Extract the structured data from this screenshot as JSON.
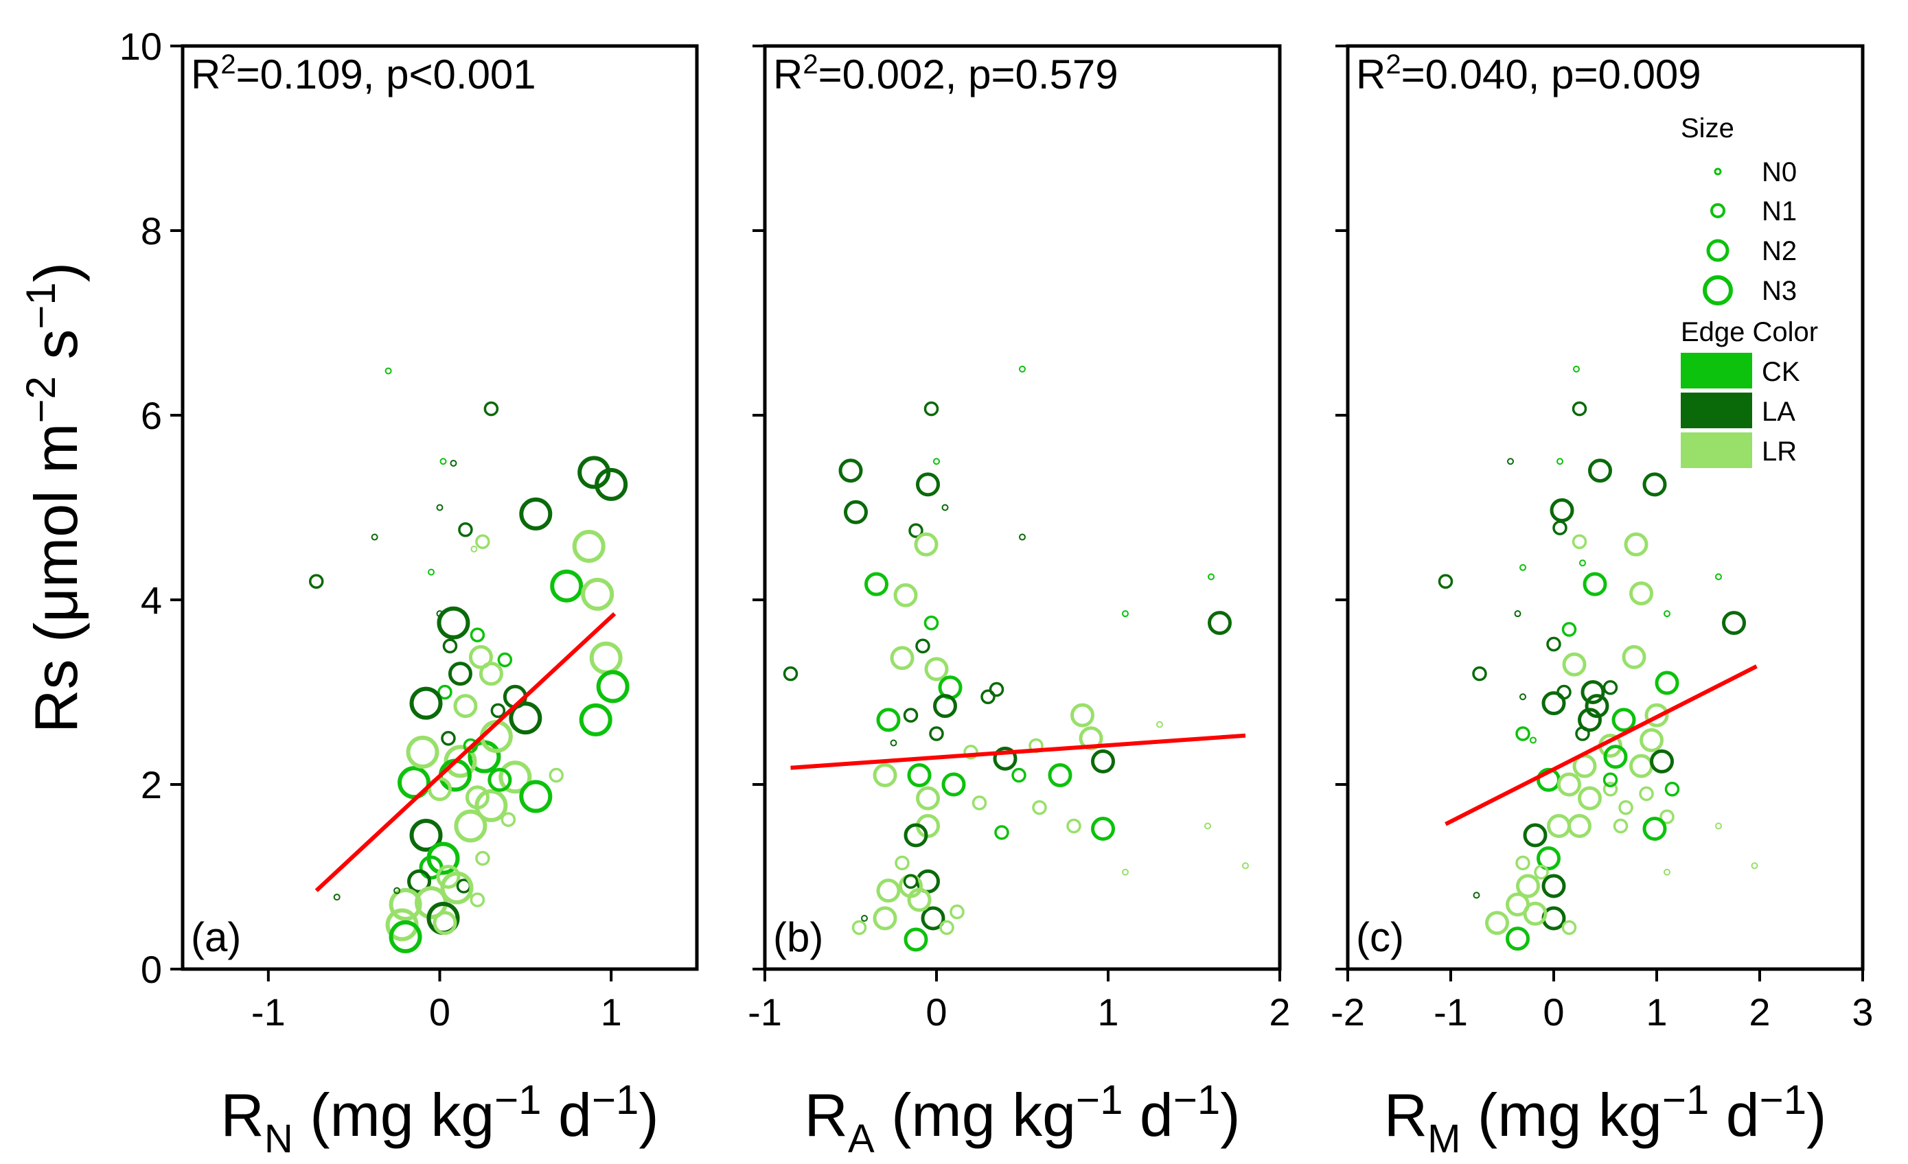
{
  "chart_data": [
    {
      "type": "scatter",
      "panel": "(a)",
      "annotation": {
        "main": "R",
        "sup": "2",
        "rest": "=0.109, p<0.001"
      },
      "xlabel": {
        "main": "R",
        "sub": "N",
        "units": " (mg kg",
        "sup1": "−1",
        "mid": " d",
        "sup2": "−1",
        "end": ")"
      },
      "ylabel": {
        "pre": "Rs (μmol m",
        "sup1": "−2",
        "mid": " s",
        "sup2": "−1",
        "end": ")"
      },
      "xlim": [
        -1.5,
        1.5
      ],
      "ylim": [
        0,
        10
      ],
      "xticks": [
        -1,
        0,
        1
      ],
      "yticks": [
        0,
        2,
        4,
        6,
        8,
        10
      ],
      "fit_line": {
        "x": [
          -0.72,
          1.02
        ],
        "y": [
          0.85,
          3.85
        ]
      },
      "points": [
        [
          -0.72,
          4.2,
          "LA",
          "N1"
        ],
        [
          -0.6,
          0.78,
          "LA",
          "N0"
        ],
        [
          -0.3,
          6.48,
          "CK",
          "N0"
        ],
        [
          -0.38,
          4.68,
          "LA",
          "N0"
        ],
        [
          0.3,
          6.07,
          "LA",
          "N1"
        ],
        [
          0.08,
          5.48,
          "LA",
          "N0"
        ],
        [
          0.02,
          5.5,
          "CK",
          "N0"
        ],
        [
          0.15,
          4.76,
          "LA",
          "N1"
        ],
        [
          0.25,
          4.63,
          "LR",
          "N1"
        ],
        [
          0.2,
          4.55,
          "LR",
          "N0"
        ],
        [
          0.0,
          5.0,
          "LA",
          "N0"
        ],
        [
          -0.05,
          4.3,
          "CK",
          "N0"
        ],
        [
          0.56,
          4.93,
          "LA",
          "N3"
        ],
        [
          0.9,
          5.38,
          "LA",
          "N3"
        ],
        [
          1.0,
          5.25,
          "LA",
          "N3"
        ],
        [
          0.87,
          4.58,
          "LR",
          "N3"
        ],
        [
          0.74,
          4.15,
          "CK",
          "N3"
        ],
        [
          0.92,
          4.06,
          "LR",
          "N3"
        ],
        [
          0.97,
          3.37,
          "LR",
          "N3"
        ],
        [
          1.01,
          3.06,
          "CK",
          "N3"
        ],
        [
          0.91,
          2.7,
          "CK",
          "N3"
        ],
        [
          0.0,
          3.85,
          "LA",
          "N0"
        ],
        [
          0.06,
          3.5,
          "LA",
          "N1"
        ],
        [
          0.08,
          3.75,
          "LA",
          "N3"
        ],
        [
          0.12,
          3.2,
          "LA",
          "N2"
        ],
        [
          0.22,
          3.62,
          "CK",
          "N1"
        ],
        [
          0.24,
          3.38,
          "LR",
          "N2"
        ],
        [
          0.3,
          3.2,
          "LR",
          "N2"
        ],
        [
          0.38,
          3.35,
          "CK",
          "N1"
        ],
        [
          0.44,
          2.95,
          "LA",
          "N2"
        ],
        [
          0.5,
          2.72,
          "LA",
          "N3"
        ],
        [
          0.34,
          2.8,
          "LA",
          "N1"
        ],
        [
          0.03,
          3.0,
          "CK",
          "N1"
        ],
        [
          -0.08,
          2.88,
          "LA",
          "N3"
        ],
        [
          0.15,
          2.85,
          "LR",
          "N2"
        ],
        [
          0.26,
          2.3,
          "CK",
          "N3"
        ],
        [
          0.33,
          2.52,
          "LR",
          "N3"
        ],
        [
          0.44,
          2.08,
          "LR",
          "N3"
        ],
        [
          0.56,
          1.87,
          "CK",
          "N3"
        ],
        [
          0.68,
          2.1,
          "LR",
          "N1"
        ],
        [
          -0.15,
          2.02,
          "CK",
          "N3"
        ],
        [
          -0.1,
          2.35,
          "LR",
          "N3"
        ],
        [
          0.05,
          2.5,
          "LA",
          "N1"
        ],
        [
          0.12,
          2.25,
          "LR",
          "N3"
        ],
        [
          0.22,
          1.86,
          "LR",
          "N2"
        ],
        [
          0.3,
          1.77,
          "LR",
          "N3"
        ],
        [
          0.4,
          1.62,
          "LR",
          "N1"
        ],
        [
          0.18,
          1.55,
          "LR",
          "N3"
        ],
        [
          0.09,
          2.1,
          "CK",
          "N3"
        ],
        [
          0.0,
          1.95,
          "LR",
          "N2"
        ],
        [
          -0.08,
          1.45,
          "LA",
          "N3"
        ],
        [
          -0.05,
          1.1,
          "CK",
          "N2"
        ],
        [
          0.02,
          1.2,
          "CK",
          "N3"
        ],
        [
          -0.12,
          0.95,
          "LA",
          "N2"
        ],
        [
          0.05,
          1.0,
          "LR",
          "N2"
        ],
        [
          0.14,
          0.9,
          "LA",
          "N1"
        ],
        [
          -0.2,
          0.7,
          "LR",
          "N3"
        ],
        [
          -0.05,
          0.72,
          "LR",
          "N3"
        ],
        [
          0.02,
          0.55,
          "LA",
          "N3"
        ],
        [
          0.1,
          0.88,
          "LR",
          "N3"
        ],
        [
          -0.22,
          0.48,
          "LR",
          "N3"
        ],
        [
          -0.2,
          0.35,
          "CK",
          "N3"
        ],
        [
          0.03,
          0.5,
          "LR",
          "N2"
        ],
        [
          0.25,
          1.2,
          "LR",
          "N1"
        ],
        [
          -0.25,
          0.85,
          "LA",
          "N0"
        ],
        [
          0.22,
          0.75,
          "LR",
          "N1"
        ],
        [
          0.35,
          2.05,
          "CK",
          "N2"
        ],
        [
          0.18,
          2.42,
          "CK",
          "N1"
        ]
      ]
    },
    {
      "type": "scatter",
      "panel": "(b)",
      "annotation": {
        "main": "R",
        "sup": "2",
        "rest": "=0.002, p=0.579"
      },
      "xlabel": {
        "main": "R",
        "sub": "A",
        "units": " (mg kg",
        "sup1": "−1",
        "mid": " d",
        "sup2": "−1",
        "end": ")"
      },
      "xlim": [
        -1,
        2
      ],
      "ylim": [
        0,
        10
      ],
      "xticks": [
        -1,
        0,
        1,
        2
      ],
      "yticks": [
        0,
        2,
        4,
        6,
        8,
        10
      ],
      "fit_line": {
        "x": [
          -0.85,
          1.8
        ],
        "y": [
          2.18,
          2.53
        ]
      },
      "points": [
        [
          -0.85,
          3.2,
          "LA",
          "N1"
        ],
        [
          -0.5,
          5.4,
          "LA",
          "N2"
        ],
        [
          -0.47,
          4.95,
          "LA",
          "N2"
        ],
        [
          -0.35,
          4.17,
          "CK",
          "N2"
        ],
        [
          -0.03,
          6.07,
          "LA",
          "N1"
        ],
        [
          0.0,
          5.5,
          "CK",
          "N0"
        ],
        [
          -0.05,
          5.25,
          "LA",
          "N2"
        ],
        [
          -0.12,
          4.75,
          "LA",
          "N1"
        ],
        [
          -0.06,
          4.6,
          "LR",
          "N2"
        ],
        [
          0.05,
          5.0,
          "LA",
          "N0"
        ],
        [
          -0.18,
          4.05,
          "LR",
          "N2"
        ],
        [
          0.5,
          6.5,
          "CK",
          "N0"
        ],
        [
          0.5,
          4.68,
          "LA",
          "N0"
        ],
        [
          1.6,
          4.25,
          "CK",
          "N0"
        ],
        [
          1.65,
          3.75,
          "LA",
          "N2"
        ],
        [
          1.1,
          3.85,
          "CK",
          "N0"
        ],
        [
          -0.08,
          3.5,
          "LA",
          "N1"
        ],
        [
          -0.03,
          3.75,
          "CK",
          "N1"
        ],
        [
          -0.2,
          3.37,
          "LR",
          "N2"
        ],
        [
          0.0,
          3.25,
          "LR",
          "N2"
        ],
        [
          0.08,
          3.05,
          "CK",
          "N2"
        ],
        [
          0.05,
          2.85,
          "LA",
          "N2"
        ],
        [
          -0.15,
          2.75,
          "LA",
          "N1"
        ],
        [
          -0.28,
          2.7,
          "CK",
          "N2"
        ],
        [
          0.3,
          2.95,
          "LA",
          "N1"
        ],
        [
          0.35,
          3.03,
          "LA",
          "N1"
        ],
        [
          0.85,
          2.75,
          "LR",
          "N2"
        ],
        [
          0.9,
          2.5,
          "LR",
          "N2"
        ],
        [
          1.3,
          2.65,
          "LR",
          "N0"
        ],
        [
          -0.25,
          2.45,
          "LA",
          "N0"
        ],
        [
          0.0,
          2.55,
          "LA",
          "N1"
        ],
        [
          0.2,
          2.35,
          "LR",
          "N1"
        ],
        [
          0.4,
          2.28,
          "LA",
          "N2"
        ],
        [
          0.58,
          2.42,
          "LR",
          "N1"
        ],
        [
          0.72,
          2.1,
          "CK",
          "N2"
        ],
        [
          0.97,
          2.25,
          "LA",
          "N2"
        ],
        [
          -0.3,
          2.1,
          "LR",
          "N2"
        ],
        [
          -0.1,
          2.1,
          "CK",
          "N2"
        ],
        [
          0.1,
          2.0,
          "CK",
          "N2"
        ],
        [
          0.25,
          1.8,
          "LR",
          "N1"
        ],
        [
          0.6,
          1.75,
          "LR",
          "N1"
        ],
        [
          0.8,
          1.55,
          "LR",
          "N1"
        ],
        [
          0.97,
          1.52,
          "CK",
          "N2"
        ],
        [
          0.38,
          1.48,
          "CK",
          "N1"
        ],
        [
          -0.05,
          1.55,
          "LR",
          "N2"
        ],
        [
          -0.05,
          1.85,
          "LR",
          "N2"
        ],
        [
          -0.12,
          1.45,
          "LA",
          "N2"
        ],
        [
          -0.2,
          1.15,
          "LR",
          "N1"
        ],
        [
          -0.05,
          0.95,
          "LA",
          "N2"
        ],
        [
          -0.15,
          0.9,
          "LR",
          "N2"
        ],
        [
          -0.28,
          0.85,
          "LR",
          "N2"
        ],
        [
          -0.02,
          0.55,
          "LA",
          "N2"
        ],
        [
          -0.3,
          0.55,
          "LR",
          "N2"
        ],
        [
          -0.1,
          0.75,
          "LR",
          "N2"
        ],
        [
          -0.12,
          0.32,
          "CK",
          "N2"
        ],
        [
          -0.45,
          0.45,
          "LR",
          "N1"
        ],
        [
          -0.42,
          0.55,
          "LA",
          "N0"
        ],
        [
          0.06,
          0.45,
          "LR",
          "N1"
        ],
        [
          1.1,
          1.05,
          "LR",
          "N0"
        ],
        [
          1.8,
          1.12,
          "LR",
          "N0"
        ],
        [
          1.58,
          1.55,
          "LR",
          "N0"
        ],
        [
          0.48,
          2.1,
          "CK",
          "N1"
        ],
        [
          -0.15,
          0.95,
          "LA",
          "N1"
        ],
        [
          0.12,
          0.62,
          "LR",
          "N1"
        ]
      ]
    },
    {
      "type": "scatter",
      "panel": "(c)",
      "annotation": {
        "main": "R",
        "sup": "2",
        "rest": "=0.040, p=0.009"
      },
      "xlabel": {
        "main": "R",
        "sub": "M",
        "units": " (mg kg",
        "sup1": "−1",
        "mid": " d",
        "sup2": "−1",
        "end": ")"
      },
      "xlim": [
        -2,
        3
      ],
      "ylim": [
        0,
        10
      ],
      "xticks": [
        -2,
        -1,
        0,
        1,
        2,
        3
      ],
      "yticks": [
        0,
        2,
        4,
        6,
        8,
        10
      ],
      "fit_line": {
        "x": [
          -1.05,
          1.97
        ],
        "y": [
          1.57,
          3.28
        ]
      },
      "points": [
        [
          -1.05,
          4.2,
          "LA",
          "N1"
        ],
        [
          -0.72,
          3.2,
          "LA",
          "N1"
        ],
        [
          -0.42,
          5.5,
          "LA",
          "N0"
        ],
        [
          0.22,
          6.5,
          "CK",
          "N0"
        ],
        [
          0.25,
          6.07,
          "LA",
          "N1"
        ],
        [
          0.06,
          5.5,
          "CK",
          "N0"
        ],
        [
          0.08,
          4.97,
          "LA",
          "N2"
        ],
        [
          0.06,
          4.78,
          "LA",
          "N1"
        ],
        [
          0.25,
          4.63,
          "LR",
          "N1"
        ],
        [
          0.28,
          4.4,
          "CK",
          "N0"
        ],
        [
          0.45,
          5.4,
          "LA",
          "N2"
        ],
        [
          0.98,
          5.25,
          "LA",
          "N2"
        ],
        [
          0.8,
          4.6,
          "LR",
          "N2"
        ],
        [
          0.85,
          4.07,
          "LR",
          "N2"
        ],
        [
          0.4,
          4.17,
          "CK",
          "N2"
        ],
        [
          1.6,
          4.25,
          "CK",
          "N0"
        ],
        [
          1.75,
          3.75,
          "LA",
          "N2"
        ],
        [
          1.1,
          3.85,
          "CK",
          "N0"
        ],
        [
          0.78,
          3.38,
          "LR",
          "N2"
        ],
        [
          -0.35,
          3.85,
          "LA",
          "N0"
        ],
        [
          -0.3,
          4.35,
          "CK",
          "N0"
        ],
        [
          0.15,
          3.68,
          "CK",
          "N1"
        ],
        [
          0.0,
          3.52,
          "LA",
          "N1"
        ],
        [
          0.2,
          3.3,
          "LR",
          "N2"
        ],
        [
          0.1,
          3.0,
          "LA",
          "N1"
        ],
        [
          0.38,
          3.0,
          "LA",
          "N2"
        ],
        [
          0.42,
          2.85,
          "LA",
          "N2"
        ],
        [
          0.55,
          3.05,
          "LA",
          "N1"
        ],
        [
          0.0,
          2.88,
          "LA",
          "N2"
        ],
        [
          0.35,
          2.7,
          "LA",
          "N2"
        ],
        [
          0.68,
          2.7,
          "CK",
          "N2"
        ],
        [
          1.0,
          2.75,
          "LR",
          "N2"
        ],
        [
          1.1,
          3.1,
          "CK",
          "N2"
        ],
        [
          -0.3,
          2.55,
          "CK",
          "N1"
        ],
        [
          -0.3,
          2.95,
          "LA",
          "N0"
        ],
        [
          -0.2,
          2.48,
          "CK",
          "N0"
        ],
        [
          0.28,
          2.55,
          "LA",
          "N1"
        ],
        [
          0.55,
          2.42,
          "LR",
          "N2"
        ],
        [
          0.85,
          2.2,
          "LR",
          "N2"
        ],
        [
          0.95,
          2.48,
          "LR",
          "N2"
        ],
        [
          1.05,
          2.25,
          "LA",
          "N2"
        ],
        [
          0.6,
          2.3,
          "CK",
          "N2"
        ],
        [
          0.3,
          2.2,
          "LR",
          "N2"
        ],
        [
          -0.05,
          2.05,
          "CK",
          "N2"
        ],
        [
          0.15,
          2.0,
          "LR",
          "N2"
        ],
        [
          0.35,
          1.85,
          "LR",
          "N2"
        ],
        [
          0.55,
          1.95,
          "LR",
          "N1"
        ],
        [
          0.7,
          1.75,
          "LR",
          "N1"
        ],
        [
          0.9,
          1.9,
          "LR",
          "N1"
        ],
        [
          1.1,
          1.65,
          "LR",
          "N1"
        ],
        [
          1.15,
          1.95,
          "CK",
          "N1"
        ],
        [
          0.05,
          1.55,
          "LR",
          "N2"
        ],
        [
          0.25,
          1.55,
          "LR",
          "N2"
        ],
        [
          0.65,
          1.55,
          "LR",
          "N1"
        ],
        [
          0.98,
          1.52,
          "CK",
          "N2"
        ],
        [
          -0.05,
          1.2,
          "CK",
          "N2"
        ],
        [
          -0.18,
          1.45,
          "LA",
          "N2"
        ],
        [
          -0.3,
          1.15,
          "LR",
          "N1"
        ],
        [
          -0.12,
          1.05,
          "LR",
          "N1"
        ],
        [
          0.0,
          0.9,
          "LA",
          "N2"
        ],
        [
          -0.25,
          0.9,
          "LR",
          "N2"
        ],
        [
          -0.35,
          0.7,
          "LR",
          "N2"
        ],
        [
          0.0,
          0.55,
          "LA",
          "N2"
        ],
        [
          -0.18,
          0.6,
          "LR",
          "N2"
        ],
        [
          -0.55,
          0.5,
          "LR",
          "N2"
        ],
        [
          -0.35,
          0.33,
          "CK",
          "N2"
        ],
        [
          -0.75,
          0.8,
          "LA",
          "N0"
        ],
        [
          0.15,
          0.45,
          "LR",
          "N1"
        ],
        [
          1.6,
          1.55,
          "LR",
          "N0"
        ],
        [
          1.1,
          1.05,
          "LR",
          "N0"
        ],
        [
          1.95,
          1.12,
          "LR",
          "N0"
        ],
        [
          0.55,
          2.05,
          "CK",
          "N1"
        ]
      ]
    }
  ],
  "legend": {
    "size_title": "Size",
    "size_items": [
      "N0",
      "N1",
      "N2",
      "N3"
    ],
    "color_title": "Edge Color",
    "color_items": [
      "CK",
      "LA",
      "LR"
    ]
  },
  "colors": {
    "CK": "#0cc20c",
    "LA": "#0a6a0a",
    "LR": "#98e06a",
    "fit_line": "#ff0000"
  },
  "marker_radius": {
    "N0": 4,
    "N1": 9,
    "N2": 15,
    "N3": 21
  }
}
